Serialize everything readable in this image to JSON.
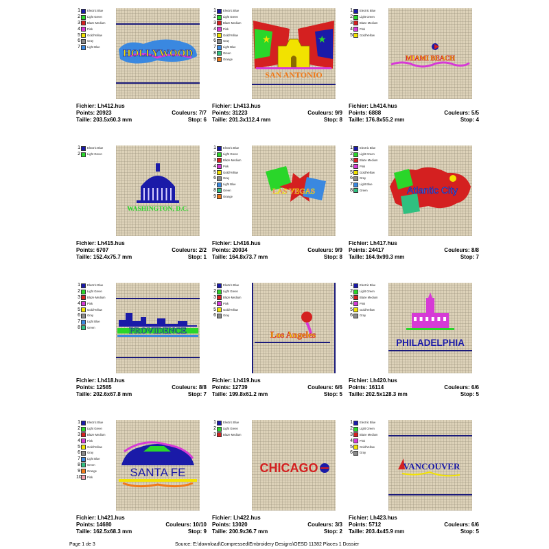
{
  "labels": {
    "file": "Fichier:",
    "points": "Points:",
    "size": "Taille:",
    "colors": "Couleurs:",
    "stop": "Stop:"
  },
  "palette_colors": {
    "Electric Blue": "#1a1aa8",
    "Light Green": "#2ad62a",
    "Blaze Medium": "#d42020",
    "Pink": "#d63ad6",
    "Gold/Yellow": "#f2e200",
    "Gray": "#8a8a8a",
    "Light Blue": "#3a88e0",
    "Green": "#30c080",
    "Orange": "#f07a1a",
    "Pink Light": "#f2a0b0"
  },
  "designs": [
    {
      "file": "Lh412.hus",
      "points": "20923",
      "size": "203.5x60.3 mm",
      "colors": "7/7",
      "stop": "6",
      "palette": [
        "Electric Blue",
        "Light Green",
        "Blaze Medium",
        "Pink",
        "Gold/Yellow",
        "Gray",
        "Light Blue"
      ],
      "palette_swatch": [
        "Electric Blue",
        "Light Green",
        "Blaze Medium",
        "Pink",
        "Gold/Yellow",
        "Gray",
        "Light Blue"
      ],
      "text": "HOLLYWOOD",
      "icon": "hollywood-sign"
    },
    {
      "file": "Lh413.hus",
      "points": "31223",
      "size": "201.3x112.4 mm",
      "colors": "9/9",
      "stop": "8",
      "palette": [
        "Electric Blue",
        "Light Green",
        "Blaze Medium",
        "Pink",
        "Gold/Yellow",
        "Gray",
        "Light Blue",
        "Green",
        "Orange"
      ],
      "palette_swatch": [
        "Electric Blue",
        "Light Green",
        "Blaze Medium",
        "Pink",
        "Gold/Yellow",
        "Gray",
        "Light Blue",
        "Green",
        "Orange"
      ],
      "text": "SAN ANTONIO",
      "icon": "alamo-flags"
    },
    {
      "file": "Lh414.hus",
      "points": "6888",
      "size": "176.8x55.2 mm",
      "colors": "5/5",
      "stop": "4",
      "palette": [
        "Electric Blue",
        "Light Green",
        "Blaze Medium",
        "Pink",
        "Gold/Yellow"
      ],
      "palette_swatch": [
        "Electric Blue",
        "Light Green",
        "Blaze Medium",
        "Pink",
        "Gold/Yellow"
      ],
      "text": "MIAMI BEACH",
      "icon": "miami-wave"
    },
    {
      "file": "Lh415.hus",
      "points": "6707",
      "size": "152.4x75.7 mm",
      "colors": "2/2",
      "stop": "1",
      "palette": [
        "Electric Blue",
        "Light Green"
      ],
      "palette_swatch": [
        "Electric Blue",
        "Light Green"
      ],
      "text": "WASHINGTON, D.C.",
      "icon": "capitol-dome"
    },
    {
      "file": "Lh416.hus",
      "points": "20034",
      "size": "164.8x73.7 mm",
      "colors": "9/9",
      "stop": "8",
      "palette": [
        "Electric Blue",
        "Light Green",
        "Blaze Medium",
        "Pink",
        "Gold/Yellow",
        "Gray",
        "Light Blue",
        "Green",
        "Orange"
      ],
      "palette_swatch": [
        "Electric Blue",
        "Light Green",
        "Blaze Medium",
        "Pink",
        "Gold/Yellow",
        "Gray",
        "Light Blue",
        "Green",
        "Orange"
      ],
      "text": "LAS VEGAS",
      "icon": "vegas-cards"
    },
    {
      "file": "Lh417.hus",
      "points": "24417",
      "size": "164.9x99.3 mm",
      "colors": "8/8",
      "stop": "7",
      "palette": [
        "Electric Blue",
        "Light Green",
        "Blaze Medium",
        "Pink",
        "Gold/Yellow",
        "Gray",
        "Light Blue",
        "Green"
      ],
      "palette_swatch": [
        "Electric Blue",
        "Light Green",
        "Blaze Medium",
        "Pink",
        "Gold/Yellow",
        "Gray",
        "Light Blue",
        "Green"
      ],
      "text": "Atlantic City",
      "icon": "atlantic-cards"
    },
    {
      "file": "Lh418.hus",
      "points": "12565",
      "size": "202.6x67.8 mm",
      "colors": "8/8",
      "stop": "7",
      "palette": [
        "Electric Blue",
        "Light Green",
        "Blaze Medium",
        "Pink",
        "Gold/Yellow",
        "Gray",
        "Light Blue",
        "Green"
      ],
      "palette_swatch": [
        "Electric Blue",
        "Light Green",
        "Blaze Medium",
        "Pink",
        "Gold/Yellow",
        "Gray",
        "Light Blue",
        "Green"
      ],
      "text": "PROVIDENCE",
      "icon": "skyline"
    },
    {
      "file": "Lh419.hus",
      "points": "12739",
      "size": "199.8x61.2 mm",
      "colors": "6/6",
      "stop": "5",
      "palette": [
        "Electric Blue",
        "Light Green",
        "Blaze Medium",
        "Pink",
        "Gold/Yellow",
        "Gray"
      ],
      "palette_swatch": [
        "Electric Blue",
        "Light Green",
        "Blaze Medium",
        "Pink",
        "Gold/Yellow",
        "Gray"
      ],
      "text": "Los Angeles",
      "icon": "la-sun"
    },
    {
      "file": "Lh420.hus",
      "points": "16114",
      "size": "202.5x128.3 mm",
      "colors": "6/6",
      "stop": "5",
      "palette": [
        "Electric Blue",
        "Light Green",
        "Blaze Medium",
        "Pink",
        "Gold/Yellow",
        "Gray"
      ],
      "palette_swatch": [
        "Electric Blue",
        "Light Green",
        "Blaze Medium",
        "Pink",
        "Gold/Yellow",
        "Gray"
      ],
      "text": "PHILADELPHIA",
      "icon": "independence-hall"
    },
    {
      "file": "Lh421.hus",
      "points": "14680",
      "size": "162.5x68.3 mm",
      "colors": "10/10",
      "stop": "9",
      "palette": [
        "Electric Blue",
        "Light Green",
        "Blaze Medium",
        "Pink",
        "Gold/Yellow",
        "Gray",
        "Light Blue",
        "Green",
        "Orange",
        "Pink"
      ],
      "palette_swatch": [
        "Electric Blue",
        "Light Green",
        "Blaze Medium",
        "Pink",
        "Gold/Yellow",
        "Gray",
        "Light Blue",
        "Green",
        "Orange",
        "Pink Light"
      ],
      "text": "SANTA FE",
      "icon": "santa-fe-mesa"
    },
    {
      "file": "Lh422.hus",
      "points": "13020",
      "size": "200.9x36.7 mm",
      "colors": "3/3",
      "stop": "2",
      "palette": [
        "Electric Blue",
        "Light Green",
        "Blaze Medium"
      ],
      "palette_swatch": [
        "Electric Blue",
        "Light Green",
        "Blaze Medium"
      ],
      "text": "CHICAGO",
      "icon": "chicago-ball"
    },
    {
      "file": "Lh423.hus",
      "points": "5712",
      "size": "203.4x45.9 mm",
      "colors": "6/6",
      "stop": "5",
      "palette": [
        "Electric Blue",
        "Light Green",
        "Blaze Medium",
        "Pink",
        "Gold/Yellow",
        "Gray"
      ],
      "palette_swatch": [
        "Electric Blue",
        "Light Green",
        "Blaze Medium",
        "Pink",
        "Gold/Yellow",
        "Gray"
      ],
      "text": "VANCOUVER",
      "icon": "sailboat"
    }
  ],
  "footer": {
    "page": "Page 1 de 3",
    "source": "Source: E:\\download\\Compressed\\Embroidery Designs\\OESD 11382 Places 1 Dossier"
  }
}
